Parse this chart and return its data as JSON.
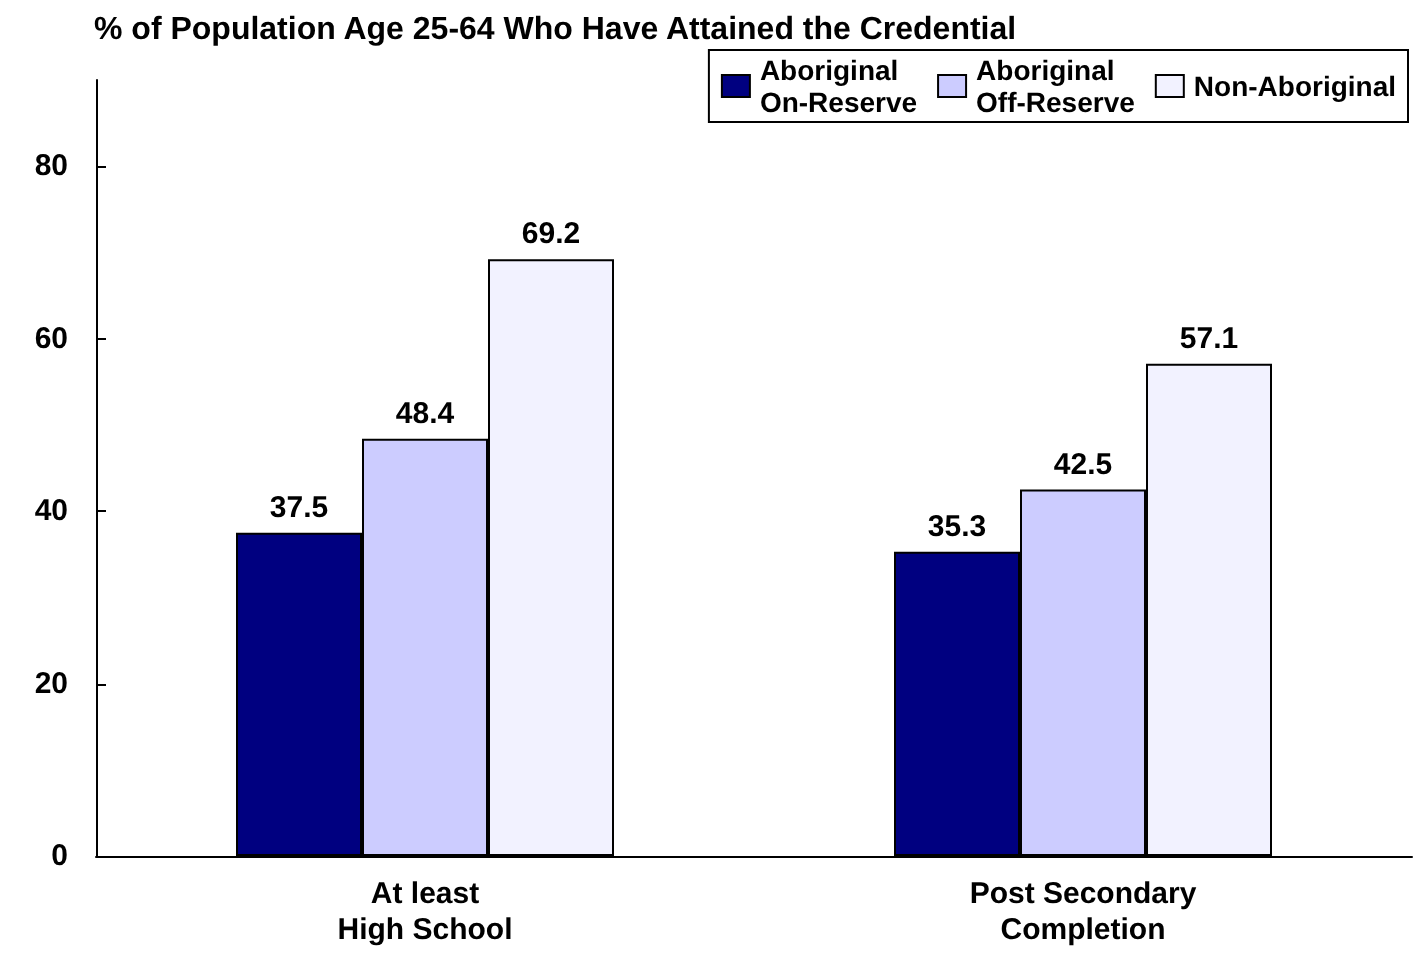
{
  "chart_data": {
    "type": "bar",
    "title": "% of Population Age 25-64 Who Have Attained the Credential",
    "categories": [
      "At least\nHigh School",
      "Post Secondary\nCompletion"
    ],
    "series": [
      {
        "name": "Aboriginal\nOn-Reserve",
        "color": "#000080",
        "values": [
          37.5,
          35.3
        ]
      },
      {
        "name": "Aboriginal\nOff-Reserve",
        "color": "#ccccff",
        "values": [
          48.4,
          42.5
        ]
      },
      {
        "name": "Non-Aboriginal",
        "color": "#f2f2ff",
        "values": [
          69.2,
          57.1
        ]
      }
    ],
    "ylim": [
      0,
      90
    ],
    "yticks": [
      0,
      20,
      40,
      60,
      80
    ],
    "grid": false,
    "legend": "top right",
    "data_labels": true
  }
}
